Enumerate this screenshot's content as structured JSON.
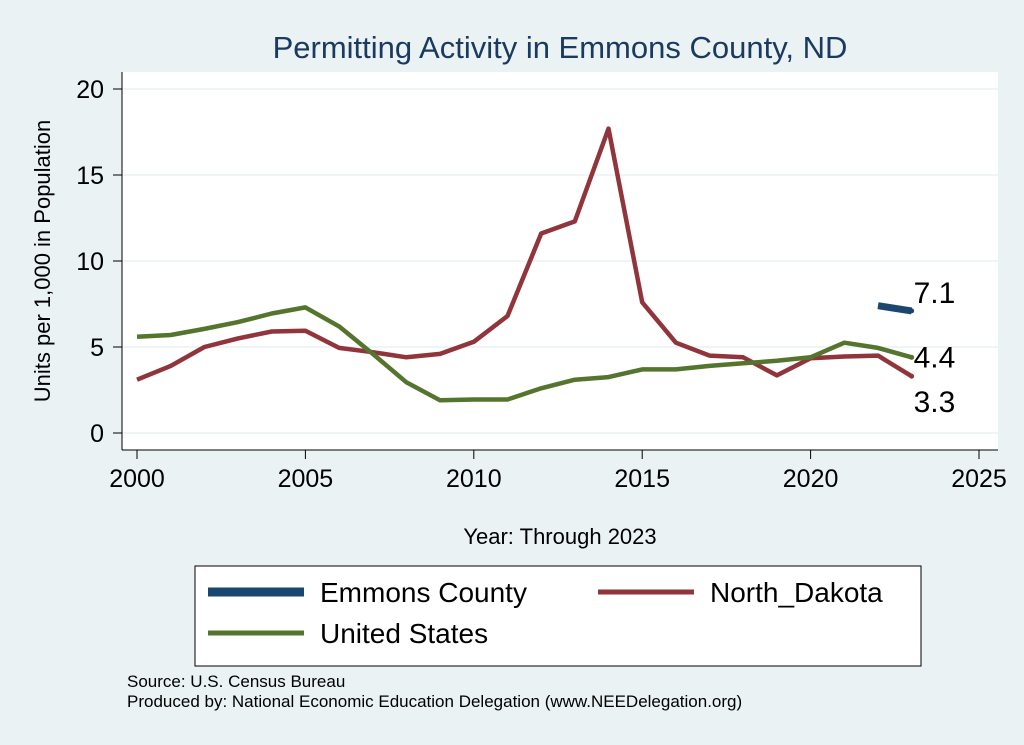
{
  "chart_data": {
    "type": "line",
    "title": "Permitting Activity in Emmons County, ND",
    "xlabel": "Year: Through 2023",
    "ylabel": "Units per 1,000 in Population",
    "xlim": [
      2000,
      2025
    ],
    "ylim": [
      0,
      20
    ],
    "xticks": [
      2000,
      2005,
      2010,
      2015,
      2020,
      2025
    ],
    "yticks": [
      0,
      5,
      10,
      15,
      20
    ],
    "grid": true,
    "legend_position": "bottom",
    "series": [
      {
        "name": "Emmons County",
        "color": "#1a476f",
        "x": [
          2022,
          2023
        ],
        "values": [
          7.4,
          7.1
        ],
        "end_label": "7.1"
      },
      {
        "name": "North_Dakota",
        "color": "#90353b",
        "x": [
          2000,
          2001,
          2002,
          2003,
          2004,
          2005,
          2006,
          2007,
          2008,
          2009,
          2010,
          2011,
          2012,
          2013,
          2014,
          2015,
          2016,
          2017,
          2018,
          2019,
          2020,
          2021,
          2022,
          2023
        ],
        "values": [
          3.1,
          3.9,
          5.0,
          5.5,
          5.9,
          5.95,
          4.95,
          4.7,
          4.4,
          4.6,
          5.3,
          6.8,
          11.6,
          12.3,
          17.7,
          7.6,
          5.25,
          4.5,
          4.4,
          3.35,
          4.35,
          4.45,
          4.5,
          3.3
        ],
        "end_label": "3.3"
      },
      {
        "name": "United States",
        "color": "#55752f",
        "x": [
          2000,
          2001,
          2002,
          2003,
          2004,
          2005,
          2006,
          2007,
          2008,
          2009,
          2010,
          2011,
          2012,
          2013,
          2014,
          2015,
          2016,
          2017,
          2018,
          2019,
          2020,
          2021,
          2022,
          2023
        ],
        "values": [
          5.6,
          5.7,
          6.05,
          6.45,
          6.95,
          7.3,
          6.2,
          4.6,
          2.95,
          1.9,
          1.95,
          1.95,
          2.6,
          3.1,
          3.25,
          3.7,
          3.7,
          3.9,
          4.05,
          4.2,
          4.4,
          5.25,
          4.95,
          4.4
        ],
        "end_label": "4.4"
      }
    ]
  },
  "source": {
    "line1": "Source: U.S. Census Bureau",
    "line2": "Produced by: National Economic Education Delegation (www.NEEDelegation.org)"
  }
}
